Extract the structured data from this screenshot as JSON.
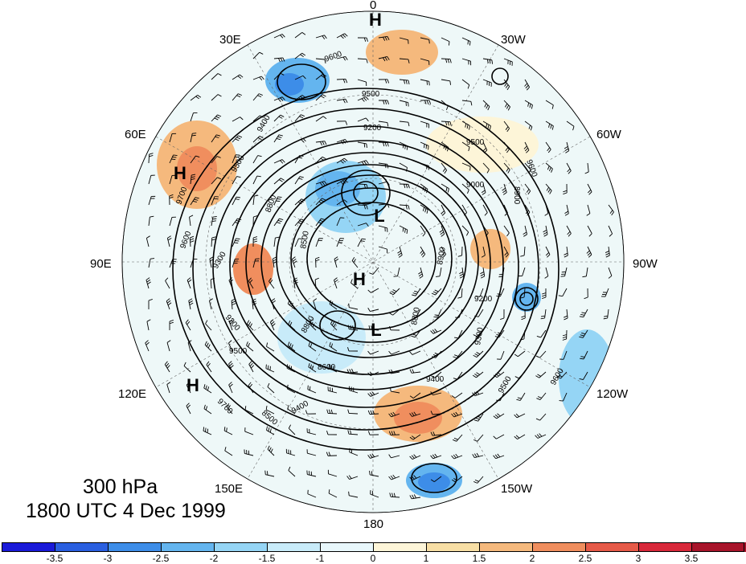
{
  "map": {
    "level_label": "300 hPa",
    "time_label": "1800 UTC 4 Dec 1999",
    "longitude_labels": [
      "0",
      "30W",
      "60W",
      "90W",
      "120W",
      "150W",
      "180",
      "150E",
      "120E",
      "90E",
      "60E",
      "30E"
    ],
    "contour_labels": [
      "9600",
      "9500",
      "9400",
      "9300",
      "9200",
      "9100",
      "9000",
      "8900",
      "8800",
      "8700",
      "8600",
      "8500",
      "9700",
      "9800"
    ],
    "pressure_centers": [
      {
        "type": "H",
        "label": "H"
      },
      {
        "type": "H",
        "label": "H"
      },
      {
        "type": "H",
        "label": "H"
      },
      {
        "type": "H",
        "label": "H"
      },
      {
        "type": "L",
        "label": "L"
      },
      {
        "type": "L",
        "label": "L"
      }
    ]
  },
  "colorbar": {
    "tick_labels": [
      "-3.5",
      "-3",
      "-2.5",
      "-2",
      "-1.5",
      "-1",
      "0",
      "1",
      "1.5",
      "2",
      "2.5",
      "3",
      "3.5"
    ],
    "colors": [
      "#1a1ad9",
      "#2a5fe0",
      "#3d8de8",
      "#64b5ef",
      "#95d5f5",
      "#c8ebf9",
      "#e8f7fb",
      "#fdf5d8",
      "#f8dfa5",
      "#f5b97d",
      "#f08e5e",
      "#e65a48",
      "#d8283a",
      "#a8142a"
    ]
  }
}
